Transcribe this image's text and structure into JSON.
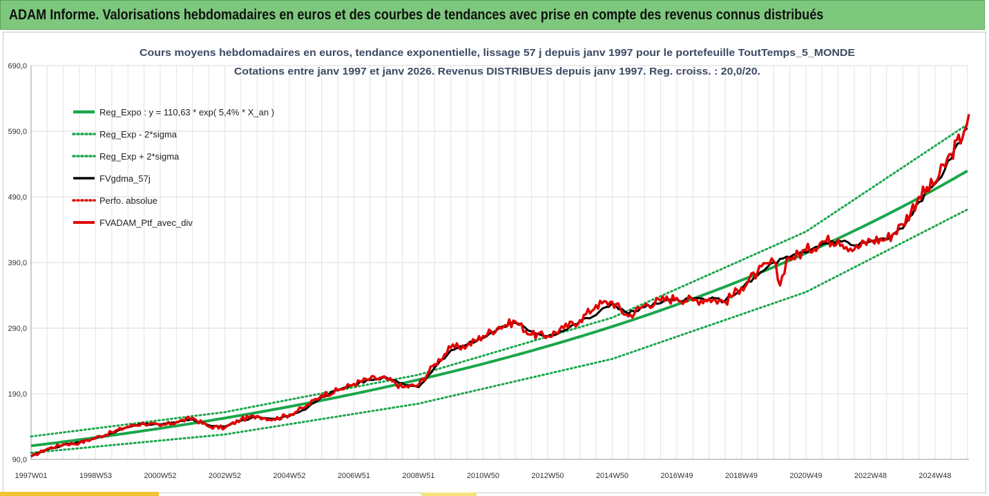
{
  "header": {
    "title": "ADAM Informe. Valorisations hebdomadaires en euros et des courbes de tendances avec prise en compte des revenus connus distribués"
  },
  "colors": {
    "banner": "#7dc87d",
    "trend": "#1aa64a",
    "black_series": "#000000",
    "red_series": "#e00000"
  },
  "chart_data": {
    "type": "line",
    "title": "Cours moyens hebdomadaires  en euros, tendance exponentielle, lissage 57 j depuis janv 1997 pour le portefeuille ToutTemps_5_MONDE",
    "subtitle": "Cotations entre janv 1997 et janv 2026. Revenus DISTRIBUES depuis janv 1997. Reg. croiss. : 20,0/20.",
    "xlabel": "",
    "ylabel": "",
    "ylim": [
      90,
      690
    ],
    "xlim": [
      1997.0,
      2026.05
    ],
    "grid": true,
    "legend_position": "top-left",
    "y_ticks": [
      "90,0",
      "190,0",
      "290,0",
      "390,0",
      "490,0",
      "590,0",
      "690,0"
    ],
    "y_tick_values": [
      90,
      190,
      290,
      390,
      490,
      590,
      690
    ],
    "x_ticks": [
      "1997W01",
      "1998W53",
      "2000W52",
      "2002W52",
      "2004W52",
      "2006W51",
      "2008W51",
      "2010W50",
      "2012W50",
      "2014W50",
      "2016W49",
      "2018W49",
      "2020W49",
      "2022W48",
      "2024W48"
    ],
    "x_tick_years": [
      1997.0,
      1999.0,
      2001.0,
      2003.0,
      2005.0,
      2007.0,
      2009.0,
      2011.0,
      2013.0,
      2015.0,
      2017.0,
      2019.0,
      2021.0,
      2023.0,
      2025.0
    ],
    "series": [
      {
        "name": "Reg_Expo : y = 110,63 * exp( 5,4% *  X_an )",
        "style": "solid-green",
        "model": {
          "a": 110.63,
          "r": 0.054,
          "x0": 1997.0
        }
      },
      {
        "name": "Reg_Exp - 2*sigma",
        "style": "dotted-green",
        "x": [
          1997.0,
          2003.0,
          2009.0,
          2015.0,
          2021.0,
          2026.05
        ],
        "values": [
          100,
          128,
          175,
          243,
          345,
          472
        ]
      },
      {
        "name": "Reg_Exp + 2*sigma",
        "style": "dotted-green",
        "x": [
          1997.0,
          2003.0,
          2009.0,
          2015.0,
          2021.0,
          2026.05
        ],
        "values": [
          125,
          162,
          219,
          306,
          437,
          602
        ]
      },
      {
        "name": "FVgdma_57j",
        "style": "solid-black",
        "x": [
          1997.0,
          1997.5,
          1998.0,
          1998.5,
          1999.0,
          1999.5,
          2000.0,
          2000.5,
          2001.0,
          2001.5,
          2002.0,
          2002.5,
          2003.0,
          2003.5,
          2004.0,
          2004.5,
          2005.0,
          2005.5,
          2006.0,
          2006.5,
          2007.0,
          2007.5,
          2008.0,
          2008.5,
          2009.0,
          2009.5,
          2010.0,
          2010.5,
          2011.0,
          2011.5,
          2012.0,
          2012.5,
          2013.0,
          2013.5,
          2014.0,
          2014.5,
          2015.0,
          2015.5,
          2016.0,
          2016.5,
          2017.0,
          2017.5,
          2018.0,
          2018.5,
          2019.0,
          2019.5,
          2020.0,
          2020.5,
          2021.0,
          2021.5,
          2022.0,
          2022.5,
          2023.0,
          2023.5,
          2024.0,
          2024.5,
          2025.0,
          2025.5,
          2026.0
        ],
        "values": [
          95,
          105,
          112,
          116,
          122,
          130,
          139,
          144,
          143,
          146,
          151,
          142,
          140,
          149,
          155,
          152,
          156,
          166,
          185,
          196,
          204,
          211,
          215,
          206,
          200,
          230,
          256,
          265,
          275,
          290,
          298,
          285,
          278,
          286,
          300,
          310,
          328,
          312,
          322,
          328,
          334,
          335,
          334,
          332,
          350,
          370,
          390,
          398,
          405,
          418,
          424,
          416,
          422,
          425,
          442,
          482,
          510,
          548,
          595
        ]
      },
      {
        "name": "Perfo. absolue",
        "style": "dotted-red",
        "x": [
          1997.0,
          2026.05
        ],
        "values": [
          95,
          612
        ]
      },
      {
        "name": "FVADAM_Ptf_avec_div",
        "style": "solid-red",
        "x": [
          1997.0,
          1997.5,
          1998.0,
          1998.5,
          1999.0,
          1999.5,
          2000.0,
          2000.5,
          2001.0,
          2001.5,
          2002.0,
          2002.5,
          2003.0,
          2003.5,
          2004.0,
          2004.5,
          2005.0,
          2005.5,
          2006.0,
          2006.5,
          2007.0,
          2007.5,
          2008.0,
          2008.5,
          2009.0,
          2009.5,
          2010.0,
          2010.5,
          2011.0,
          2011.5,
          2012.0,
          2012.5,
          2013.0,
          2013.5,
          2014.0,
          2014.5,
          2015.0,
          2015.5,
          2016.0,
          2016.5,
          2017.0,
          2017.5,
          2018.0,
          2018.5,
          2019.0,
          2019.5,
          2020.0,
          2020.2,
          2020.4,
          2020.6,
          2021.0,
          2021.5,
          2022.0,
          2022.5,
          2023.0,
          2023.5,
          2024.0,
          2024.5,
          2025.0,
          2025.5,
          2025.9,
          2026.05
        ],
        "values": [
          94,
          106,
          113,
          115,
          123,
          131,
          140,
          145,
          141,
          147,
          153,
          140,
          138,
          151,
          156,
          151,
          158,
          170,
          188,
          195,
          205,
          213,
          213,
          200,
          203,
          235,
          260,
          263,
          278,
          292,
          300,
          280,
          278,
          290,
          302,
          325,
          330,
          308,
          325,
          332,
          336,
          332,
          335,
          330,
          352,
          375,
          392,
          355,
          395,
          398,
          408,
          422,
          425,
          410,
          424,
          426,
          448,
          490,
          512,
          555,
          590,
          616
        ]
      }
    ]
  }
}
